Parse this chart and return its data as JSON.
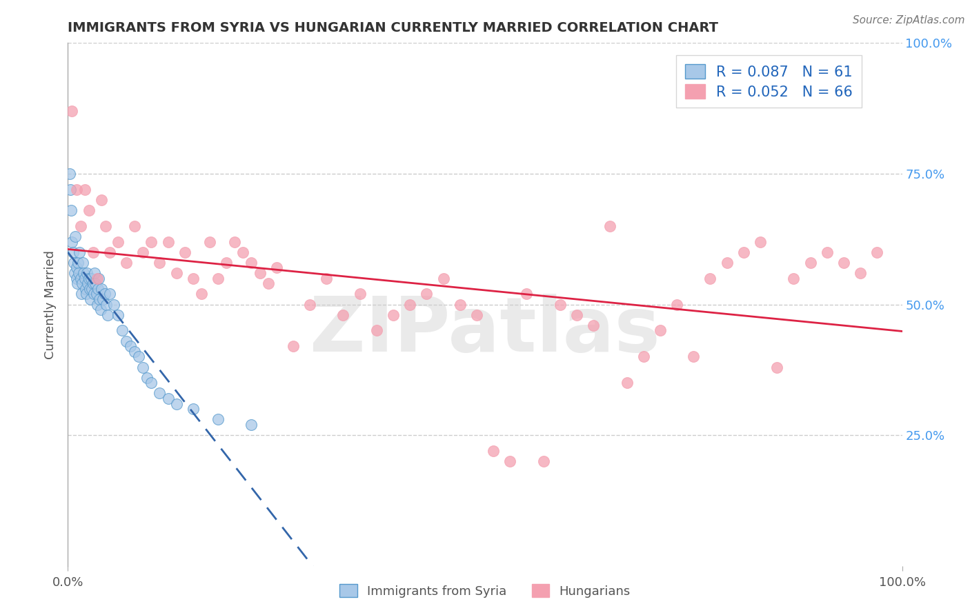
{
  "title": "IMMIGRANTS FROM SYRIA VS HUNGARIAN CURRENTLY MARRIED CORRELATION CHART",
  "source_text": "Source: ZipAtlas.com",
  "ylabel": "Currently Married",
  "legend_blue_label": "Immigrants from Syria",
  "legend_pink_label": "Hungarians",
  "R_blue": 0.087,
  "N_blue": 61,
  "R_pink": 0.052,
  "N_pink": 66,
  "blue_color": "#a8c8e8",
  "blue_edge": "#5599cc",
  "pink_color": "#f4a0b0",
  "pink_edge": "#f4a0b0",
  "blue_line_color": "#3366aa",
  "pink_line_color": "#dd2244",
  "background_color": "#ffffff",
  "grid_color": "#cccccc",
  "watermark": "ZIPatlas",
  "watermark_color": "#cccccc",
  "blue_x": [
    0.002,
    0.003,
    0.004,
    0.005,
    0.006,
    0.007,
    0.008,
    0.009,
    0.01,
    0.01,
    0.011,
    0.012,
    0.013,
    0.014,
    0.015,
    0.016,
    0.017,
    0.018,
    0.019,
    0.02,
    0.021,
    0.022,
    0.023,
    0.024,
    0.025,
    0.026,
    0.027,
    0.028,
    0.029,
    0.03,
    0.031,
    0.032,
    0.033,
    0.034,
    0.035,
    0.036,
    0.037,
    0.038,
    0.039,
    0.04,
    0.042,
    0.044,
    0.046,
    0.048,
    0.05,
    0.055,
    0.06,
    0.065,
    0.07,
    0.075,
    0.08,
    0.085,
    0.09,
    0.095,
    0.1,
    0.11,
    0.12,
    0.13,
    0.15,
    0.18,
    0.22
  ],
  "blue_y": [
    0.75,
    0.72,
    0.68,
    0.62,
    0.6,
    0.58,
    0.56,
    0.63,
    0.55,
    0.57,
    0.54,
    0.58,
    0.56,
    0.6,
    0.55,
    0.52,
    0.54,
    0.58,
    0.56,
    0.55,
    0.53,
    0.52,
    0.56,
    0.54,
    0.55,
    0.53,
    0.51,
    0.55,
    0.53,
    0.54,
    0.52,
    0.56,
    0.54,
    0.52,
    0.5,
    0.53,
    0.55,
    0.51,
    0.49,
    0.53,
    0.51,
    0.52,
    0.5,
    0.48,
    0.52,
    0.5,
    0.48,
    0.45,
    0.43,
    0.42,
    0.41,
    0.4,
    0.38,
    0.36,
    0.35,
    0.33,
    0.32,
    0.31,
    0.3,
    0.28,
    0.27
  ],
  "pink_x": [
    0.005,
    0.01,
    0.015,
    0.02,
    0.025,
    0.03,
    0.035,
    0.04,
    0.045,
    0.05,
    0.06,
    0.07,
    0.08,
    0.09,
    0.1,
    0.11,
    0.12,
    0.13,
    0.14,
    0.15,
    0.16,
    0.17,
    0.18,
    0.19,
    0.2,
    0.21,
    0.22,
    0.23,
    0.24,
    0.25,
    0.27,
    0.29,
    0.31,
    0.33,
    0.35,
    0.37,
    0.39,
    0.41,
    0.43,
    0.45,
    0.47,
    0.49,
    0.51,
    0.53,
    0.55,
    0.57,
    0.59,
    0.61,
    0.63,
    0.65,
    0.67,
    0.69,
    0.71,
    0.73,
    0.75,
    0.77,
    0.79,
    0.81,
    0.83,
    0.85,
    0.87,
    0.89,
    0.91,
    0.93,
    0.95,
    0.97
  ],
  "pink_y": [
    0.87,
    0.72,
    0.65,
    0.72,
    0.68,
    0.6,
    0.55,
    0.7,
    0.65,
    0.6,
    0.62,
    0.58,
    0.65,
    0.6,
    0.62,
    0.58,
    0.62,
    0.56,
    0.6,
    0.55,
    0.52,
    0.62,
    0.55,
    0.58,
    0.62,
    0.6,
    0.58,
    0.56,
    0.54,
    0.57,
    0.42,
    0.5,
    0.55,
    0.48,
    0.52,
    0.45,
    0.48,
    0.5,
    0.52,
    0.55,
    0.5,
    0.48,
    0.22,
    0.2,
    0.52,
    0.2,
    0.5,
    0.48,
    0.46,
    0.65,
    0.35,
    0.4,
    0.45,
    0.5,
    0.4,
    0.55,
    0.58,
    0.6,
    0.62,
    0.38,
    0.55,
    0.58,
    0.6,
    0.58,
    0.56,
    0.6
  ]
}
